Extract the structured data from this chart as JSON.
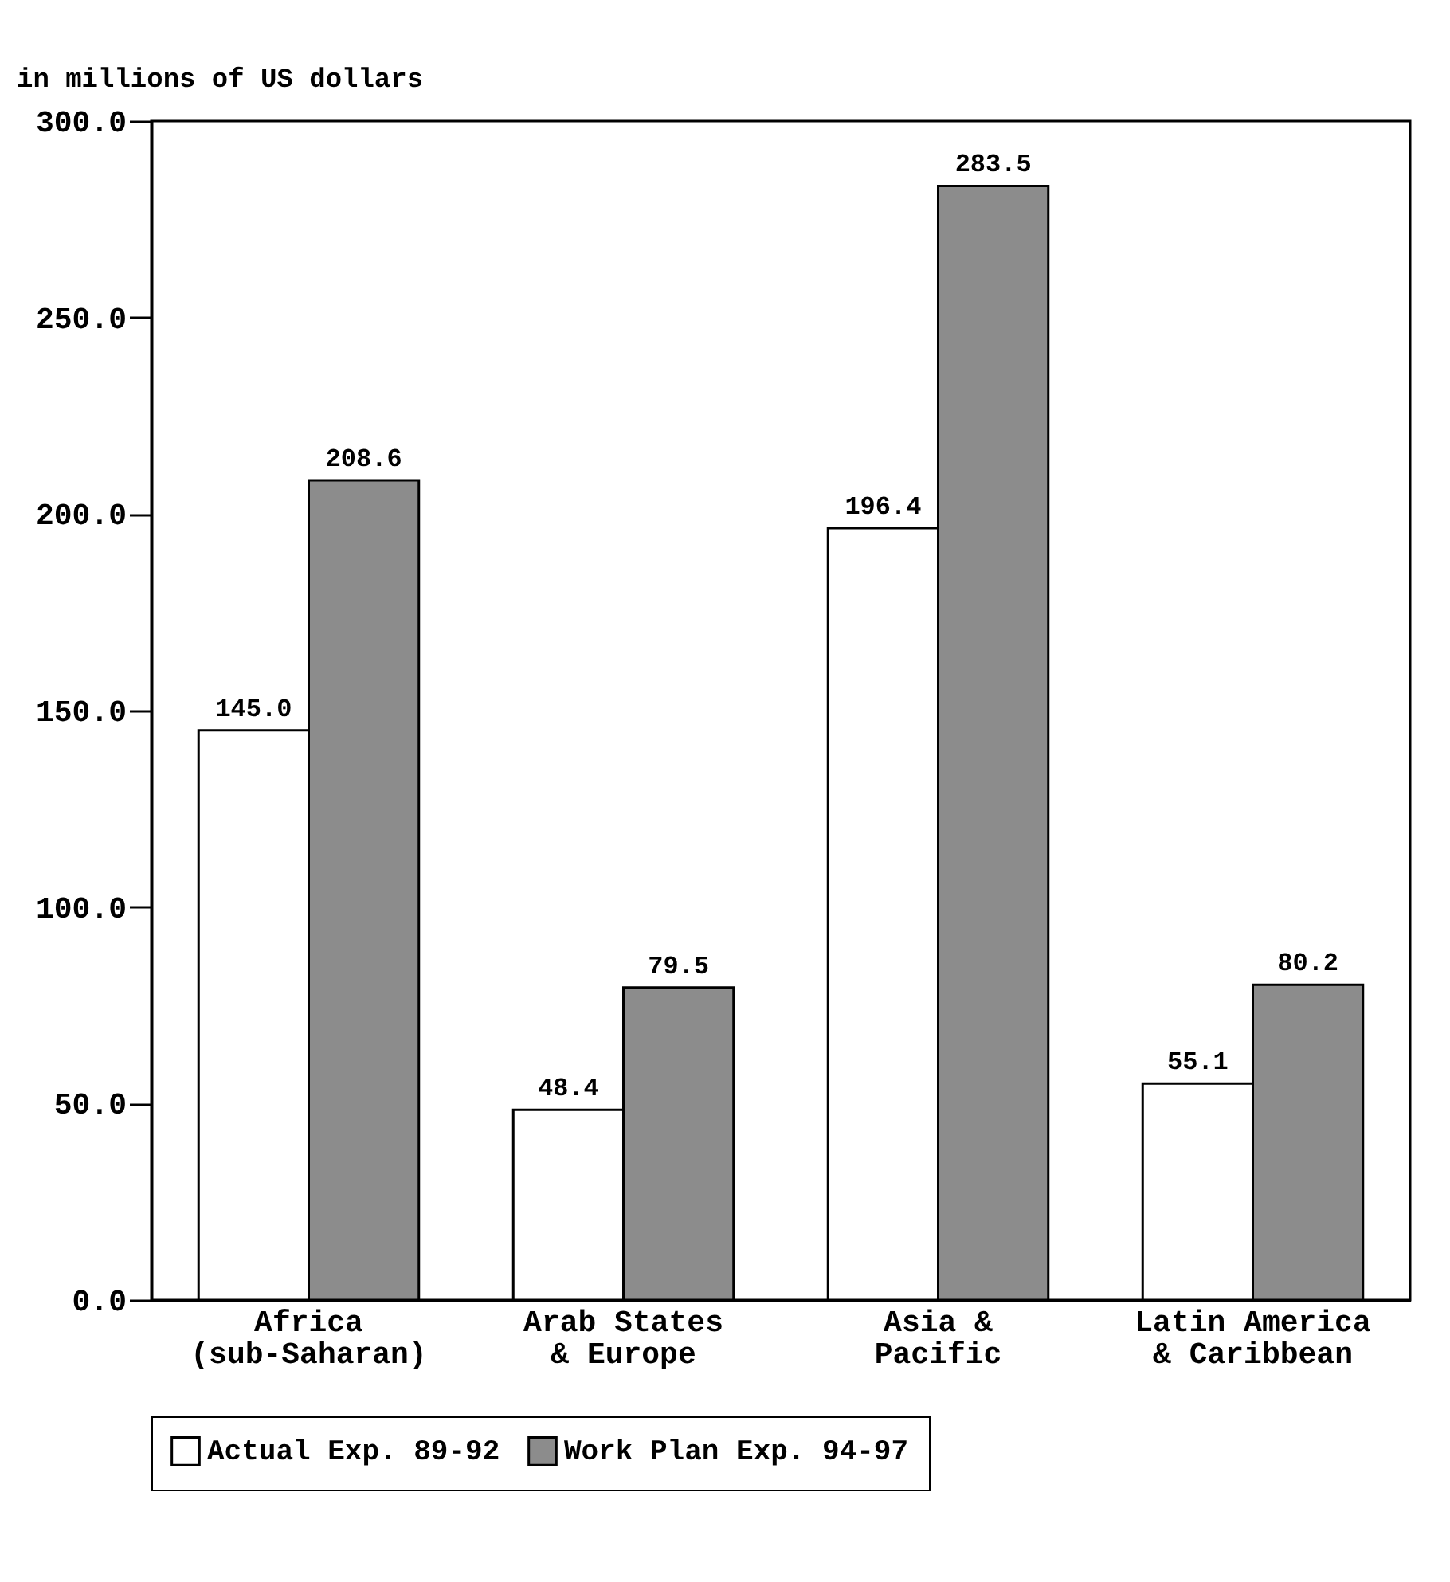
{
  "chart_data": {
    "type": "bar",
    "ylabel": "in millions of US dollars",
    "categories": [
      "Africa\n(sub-Saharan)",
      "Arab States\n& Europe",
      "Asia &\nPacific",
      "Latin America\n& Caribbean"
    ],
    "series": [
      {
        "name": "Actual Exp. 89-92",
        "color": "#ffffff",
        "values": [
          145.0,
          48.4,
          196.4,
          55.1
        ],
        "value_labels": [
          "145.0",
          "48.4",
          "196.4",
          "55.1"
        ]
      },
      {
        "name": "Work Plan Exp. 94-97",
        "color": "#8c8c8c",
        "values": [
          208.6,
          79.5,
          283.5,
          80.2
        ],
        "value_labels": [
          "208.6",
          "79.5",
          "283.5",
          "80.2"
        ]
      }
    ],
    "ylim": [
      0,
      300
    ],
    "yticks": [
      {
        "value": 0,
        "label": "0.0"
      },
      {
        "value": 50,
        "label": "50.0"
      },
      {
        "value": 100,
        "label": "100.0"
      },
      {
        "value": 150,
        "label": "150.0"
      },
      {
        "value": 200,
        "label": "200.0"
      },
      {
        "value": 250,
        "label": "250.0"
      },
      {
        "value": 300,
        "label": "300.0"
      }
    ],
    "grid": false,
    "legend": "bottom"
  }
}
